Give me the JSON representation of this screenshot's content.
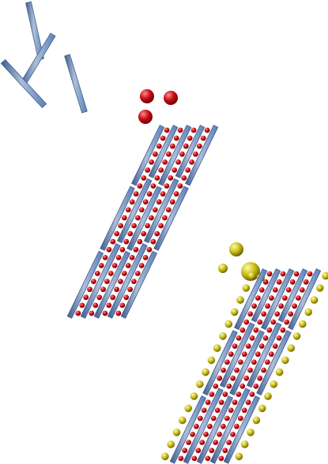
{
  "diagram": {
    "stages": [
      {
        "id": "loose-rods",
        "rod_count": 5
      },
      {
        "id": "assembled-stack",
        "layers": 5,
        "ion": "red"
      },
      {
        "id": "coated-stack",
        "layers": 5,
        "ions": [
          "red",
          "yellow"
        ]
      }
    ]
  },
  "colors": {
    "background": "#ffffff",
    "rod_fill": "#5b7fb6",
    "rod_stroke": "#3d5d8f",
    "rod_highlight": "#aebfd9",
    "red_ion": "#c20d14",
    "red_ion_dark": "#7a0006",
    "red_ion_light": "#ff8a8a",
    "yellow_ion": "#c9bd17",
    "yellow_ion_dark": "#6f6606",
    "yellow_ion_light": "#fffaa8"
  }
}
